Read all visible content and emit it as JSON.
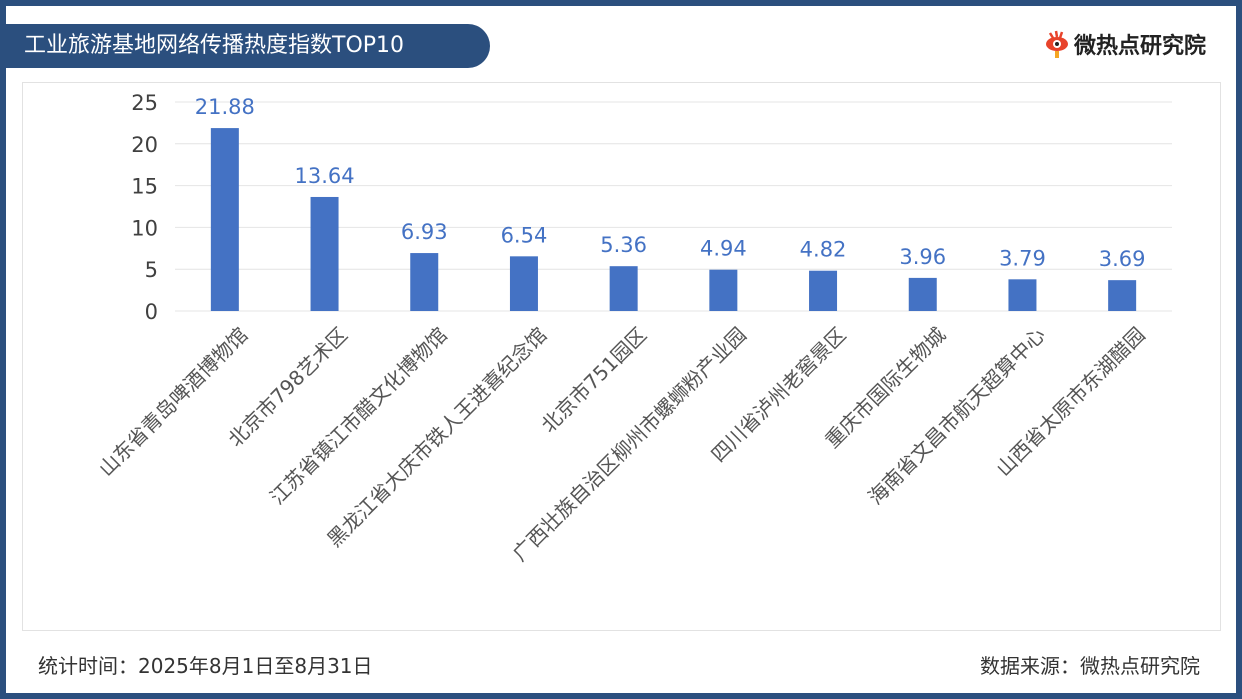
{
  "header": {
    "title": "工业旅游基地网络传播热度指数TOP10",
    "logo_text": "微热点研究院"
  },
  "footer": {
    "period": "统计时间：2025年8月1日至8月31日",
    "source": "数据来源：微热点研究院"
  },
  "colors": {
    "bar": "#4472c4",
    "label": "#4472c4",
    "frame": "#2b4f7e"
  },
  "chart_data": {
    "type": "bar",
    "title": "工业旅游基地网络传播热度指数TOP10",
    "categories": [
      "山东省青岛啤酒博物馆",
      "北京市798艺术区",
      "江苏省镇江市醋文化博物馆",
      "黑龙江省大庆市铁人王进喜纪念馆",
      "北京市751园区",
      "广西壮族自治区柳州市螺蛳粉产业园",
      "四川省泸州老窖景区",
      "重庆市国际生物城",
      "海南省文昌市航天超算中心",
      "山西省太原市东湖醋园"
    ],
    "values": [
      21.88,
      13.64,
      6.93,
      6.54,
      5.36,
      4.94,
      4.82,
      3.96,
      3.79,
      3.69
    ],
    "value_labels": [
      "21.88",
      "13.64",
      "6.93",
      "6.54",
      "5.36",
      "4.94",
      "4.82",
      "3.96",
      "3.79",
      "3.69"
    ],
    "yticks": [
      "0",
      "5",
      "10",
      "15",
      "20",
      "25"
    ],
    "ylim": [
      0,
      25
    ],
    "grid": true,
    "xlabel": "",
    "ylabel": ""
  }
}
